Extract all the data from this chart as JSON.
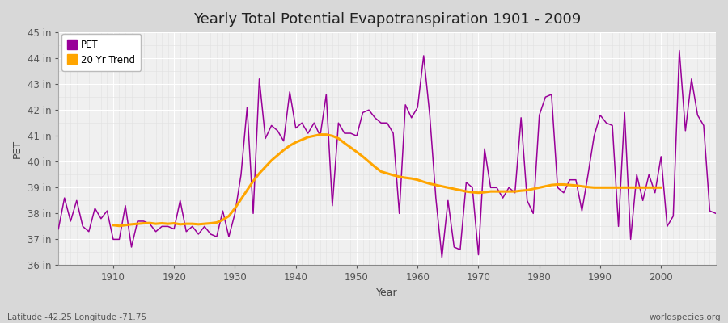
{
  "title": "Yearly Total Potential Evapotranspiration 1901 - 2009",
  "xlabel": "Year",
  "ylabel": "PET",
  "years": [
    1901,
    1902,
    1903,
    1904,
    1905,
    1906,
    1907,
    1908,
    1909,
    1910,
    1911,
    1912,
    1913,
    1914,
    1915,
    1916,
    1917,
    1918,
    1919,
    1920,
    1921,
    1922,
    1923,
    1924,
    1925,
    1926,
    1927,
    1928,
    1929,
    1930,
    1931,
    1932,
    1933,
    1934,
    1935,
    1936,
    1937,
    1938,
    1939,
    1940,
    1941,
    1942,
    1943,
    1944,
    1945,
    1946,
    1947,
    1948,
    1949,
    1950,
    1951,
    1952,
    1953,
    1954,
    1955,
    1956,
    1957,
    1958,
    1959,
    1960,
    1961,
    1962,
    1963,
    1964,
    1965,
    1966,
    1967,
    1968,
    1969,
    1970,
    1971,
    1972,
    1973,
    1974,
    1975,
    1976,
    1977,
    1978,
    1979,
    1980,
    1981,
    1982,
    1983,
    1984,
    1985,
    1986,
    1987,
    1988,
    1989,
    1990,
    1991,
    1992,
    1993,
    1994,
    1995,
    1996,
    1997,
    1998,
    1999,
    2000,
    2001,
    2002,
    2003,
    2004,
    2005,
    2006,
    2007,
    2008,
    2009
  ],
  "pet": [
    37.4,
    38.6,
    37.7,
    38.5,
    37.5,
    37.3,
    38.2,
    37.8,
    38.1,
    37.0,
    37.0,
    38.3,
    36.7,
    37.7,
    37.7,
    37.6,
    37.3,
    37.5,
    37.5,
    37.4,
    38.5,
    37.3,
    37.5,
    37.2,
    37.5,
    37.2,
    37.1,
    38.1,
    37.1,
    38.0,
    39.5,
    42.1,
    38.0,
    43.2,
    40.9,
    41.4,
    41.2,
    40.8,
    42.7,
    41.3,
    41.5,
    41.1,
    41.5,
    41.0,
    42.6,
    38.3,
    41.5,
    41.1,
    41.1,
    41.0,
    41.9,
    42.0,
    41.7,
    41.5,
    41.5,
    41.1,
    38.0,
    42.2,
    41.7,
    42.1,
    44.1,
    41.8,
    38.6,
    36.3,
    38.5,
    36.7,
    36.6,
    39.2,
    39.0,
    36.4,
    40.5,
    39.0,
    39.0,
    38.6,
    39.0,
    38.8,
    41.7,
    38.5,
    38.0,
    41.8,
    42.5,
    42.6,
    39.0,
    38.8,
    39.3,
    39.3,
    38.1,
    39.5,
    41.0,
    41.8,
    41.5,
    41.4,
    37.5,
    41.9,
    37.0,
    39.5,
    38.5,
    39.5,
    38.8,
    40.2,
    37.5,
    37.9,
    44.3,
    41.2,
    43.2,
    41.8,
    41.4,
    38.1,
    38.0
  ],
  "trend_years": [
    1910,
    1911,
    1912,
    1913,
    1914,
    1915,
    1916,
    1917,
    1918,
    1919,
    1920,
    1921,
    1922,
    1923,
    1924,
    1925,
    1926,
    1927,
    1928,
    1929,
    1930,
    1931,
    1932,
    1933,
    1934,
    1935,
    1936,
    1937,
    1938,
    1939,
    1940,
    1941,
    1942,
    1943,
    1944,
    1945,
    1946,
    1947,
    1948,
    1949,
    1950,
    1951,
    1952,
    1953,
    1954,
    1955,
    1956,
    1957,
    1958,
    1959,
    1960,
    1961,
    1962,
    1963,
    1964,
    1965,
    1966,
    1967,
    1968,
    1969,
    1970,
    1971,
    1972,
    1973,
    1974,
    1975,
    1976,
    1977,
    1978,
    1979,
    1980,
    1981,
    1982,
    1983,
    1984,
    1985,
    1986,
    1987,
    1988,
    1989,
    1990,
    1991,
    1992,
    1993,
    1994,
    1995,
    1996,
    1997,
    1998,
    1999,
    2000
  ],
  "trend": [
    37.55,
    37.52,
    37.55,
    37.58,
    37.6,
    37.62,
    37.63,
    37.6,
    37.62,
    37.6,
    37.62,
    37.58,
    37.6,
    37.6,
    37.58,
    37.6,
    37.62,
    37.65,
    37.75,
    37.9,
    38.2,
    38.55,
    38.9,
    39.25,
    39.55,
    39.8,
    40.05,
    40.25,
    40.45,
    40.62,
    40.75,
    40.85,
    40.95,
    41.0,
    41.05,
    41.05,
    41.0,
    40.9,
    40.72,
    40.55,
    40.38,
    40.2,
    40.0,
    39.8,
    39.62,
    39.55,
    39.48,
    39.42,
    39.38,
    39.35,
    39.3,
    39.22,
    39.15,
    39.1,
    39.05,
    39.0,
    38.95,
    38.9,
    38.85,
    38.82,
    38.8,
    38.82,
    38.85,
    38.85,
    38.85,
    38.85,
    38.85,
    38.88,
    38.9,
    38.95,
    39.0,
    39.05,
    39.1,
    39.12,
    39.12,
    39.1,
    39.08,
    39.05,
    39.02,
    39.0,
    39.0,
    39.0,
    39.0,
    39.0,
    39.0,
    39.0,
    39.0,
    39.0,
    39.0,
    39.0,
    39.0
  ],
  "pet_color": "#990099",
  "trend_color": "#FFA500",
  "plot_bg_color": "#f0f0f0",
  "fig_bg_color": "#d8d8d8",
  "major_grid_color": "#ffffff",
  "minor_grid_color": "#e0e0e0",
  "ylim": [
    36,
    45
  ],
  "yticks": [
    36,
    37,
    38,
    39,
    40,
    41,
    42,
    43,
    44,
    45
  ],
  "ytick_labels": [
    "36 in",
    "37 in",
    "38 in",
    "39 in",
    "40 in",
    "41 in",
    "42 in",
    "43 in",
    "44 in",
    "45 in"
  ],
  "xlim": [
    1901,
    2009
  ],
  "xticks": [
    1910,
    1920,
    1930,
    1940,
    1950,
    1960,
    1970,
    1980,
    1990,
    2000
  ],
  "title_fontsize": 13,
  "label_fontsize": 9,
  "tick_fontsize": 8.5,
  "footer_left": "Latitude -42.25 Longitude -71.75",
  "footer_right": "worldspecies.org",
  "legend_labels": [
    "PET",
    "20 Yr Trend"
  ]
}
